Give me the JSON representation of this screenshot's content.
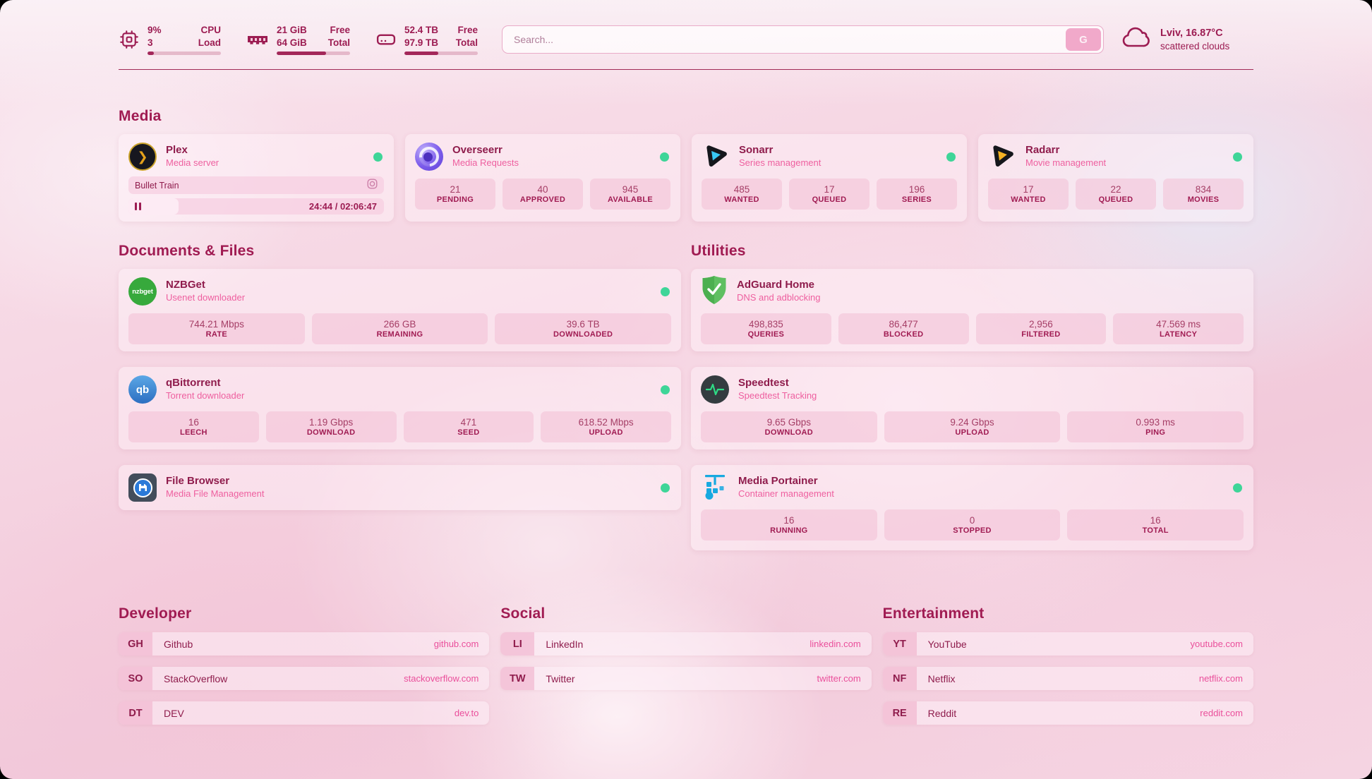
{
  "colors": {
    "accent": "#9c1c52",
    "secondary_pink": "#ee5f9f",
    "link_pink": "#ea4f9b",
    "status_online_green": "#3ed598",
    "bar_fill": "#a3285a",
    "search_button_bg": "#f1a9ca"
  },
  "topbar": {
    "widgets": [
      {
        "icon": "cpu-icon",
        "v1": "9%",
        "v2": "3",
        "l1": "CPU",
        "l2": "Load",
        "pct": 9
      },
      {
        "icon": "memory-icon",
        "v1": "21 GiB",
        "v2": "64 GiB",
        "l1": "Free",
        "l2": "Total",
        "pct": 67
      },
      {
        "icon": "disk-icon",
        "v1": "52.4 TB",
        "v2": "97.9 TB",
        "l1": "Free",
        "l2": "Total",
        "pct": 46
      }
    ],
    "search": {
      "placeholder": "Search...",
      "button_label": "G"
    },
    "weather": {
      "icon": "cloud-icon",
      "location": "Lviv, 16.87°C",
      "condition": "scattered clouds"
    }
  },
  "sections": {
    "media": {
      "title": "Media",
      "apps": [
        {
          "icon": "plex-icon",
          "icon_glyph": "❯",
          "name": "Plex",
          "desc": "Media server",
          "online": true,
          "now_playing": {
            "title": "Bullet Train",
            "time": "24:44 / 02:06:47",
            "progress_pct": 19.5
          }
        },
        {
          "icon": "overseerr-icon",
          "name": "Overseerr",
          "desc": "Media Requests",
          "online": true,
          "stats": [
            {
              "value": "21",
              "label": "PENDING"
            },
            {
              "value": "40",
              "label": "APPROVED"
            },
            {
              "value": "945",
              "label": "AVAILABLE"
            }
          ]
        },
        {
          "icon": "sonarr-icon",
          "name": "Sonarr",
          "desc": "Series management",
          "online": true,
          "stats": [
            {
              "value": "485",
              "label": "WANTED"
            },
            {
              "value": "17",
              "label": "QUEUED"
            },
            {
              "value": "196",
              "label": "SERIES"
            }
          ]
        },
        {
          "icon": "radarr-icon",
          "name": "Radarr",
          "desc": "Movie management",
          "online": true,
          "stats": [
            {
              "value": "17",
              "label": "WANTED"
            },
            {
              "value": "22",
              "label": "QUEUED"
            },
            {
              "value": "834",
              "label": "MOVIES"
            }
          ]
        }
      ]
    },
    "documents": {
      "title": "Documents & Files",
      "apps": [
        {
          "icon": "nzbget-icon",
          "icon_text": "nzbget",
          "name": "NZBGet",
          "desc": "Usenet downloader",
          "online": true,
          "stats": [
            {
              "value": "744.21 Mbps",
              "label": "RATE"
            },
            {
              "value": "266 GB",
              "label": "REMAINING"
            },
            {
              "value": "39.6 TB",
              "label": "DOWNLOADED"
            }
          ]
        },
        {
          "icon": "qbittorrent-icon",
          "icon_text": "qb",
          "name": "qBittorrent",
          "desc": "Torrent downloader",
          "online": true,
          "stats": [
            {
              "value": "16",
              "label": "LEECH"
            },
            {
              "value": "1.19 Gbps",
              "label": "DOWNLOAD"
            },
            {
              "value": "471",
              "label": "SEED"
            },
            {
              "value": "618.52 Mbps",
              "label": "UPLOAD"
            }
          ]
        },
        {
          "icon": "filebrowser-icon",
          "name": "File Browser",
          "desc": "Media File Management",
          "online": true
        }
      ]
    },
    "utilities": {
      "title": "Utilities",
      "apps": [
        {
          "icon": "adguard-icon",
          "name": "AdGuard Home",
          "desc": "DNS and adblocking",
          "online": false,
          "stats": [
            {
              "value": "498,835",
              "label": "QUERIES"
            },
            {
              "value": "86,477",
              "label": "BLOCKED"
            },
            {
              "value": "2,956",
              "label": "FILTERED"
            },
            {
              "value": "47.569 ms",
              "label": "LATENCY"
            }
          ]
        },
        {
          "icon": "speedtest-icon",
          "name": "Speedtest",
          "desc": "Speedtest Tracking",
          "online": false,
          "stats": [
            {
              "value": "9.65 Gbps",
              "label": "DOWNLOAD"
            },
            {
              "value": "9.24 Gbps",
              "label": "UPLOAD"
            },
            {
              "value": "0.993 ms",
              "label": "PING"
            }
          ]
        },
        {
          "icon": "portainer-icon",
          "name": "Media Portainer",
          "desc": "Container management",
          "online": true,
          "stats": [
            {
              "value": "16",
              "label": "RUNNING"
            },
            {
              "value": "0",
              "label": "STOPPED"
            },
            {
              "value": "16",
              "label": "TOTAL"
            }
          ]
        }
      ]
    },
    "bookmarks": [
      {
        "title": "Developer",
        "items": [
          {
            "abbr": "GH",
            "name": "Github",
            "url": "github.com"
          },
          {
            "abbr": "SO",
            "name": "StackOverflow",
            "url": "stackoverflow.com"
          },
          {
            "abbr": "DT",
            "name": "DEV",
            "url": "dev.to"
          }
        ]
      },
      {
        "title": "Social",
        "items": [
          {
            "abbr": "LI",
            "name": "LinkedIn",
            "url": "linkedin.com"
          },
          {
            "abbr": "TW",
            "name": "Twitter",
            "url": "twitter.com"
          }
        ]
      },
      {
        "title": "Entertainment",
        "items": [
          {
            "abbr": "YT",
            "name": "YouTube",
            "url": "youtube.com"
          },
          {
            "abbr": "NF",
            "name": "Netflix",
            "url": "netflix.com"
          },
          {
            "abbr": "RE",
            "name": "Reddit",
            "url": "reddit.com"
          }
        ]
      }
    ]
  }
}
